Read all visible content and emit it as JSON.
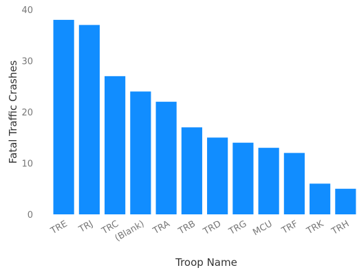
{
  "chart_data": {
    "type": "bar",
    "categories": [
      "TRE",
      "TRJ",
      "TRC",
      "(Blank)",
      "TRA",
      "TRB",
      "TRD",
      "TRG",
      "MCU",
      "TRF",
      "TRK",
      "TRH"
    ],
    "values": [
      38,
      37,
      27,
      24,
      22,
      17,
      15,
      14,
      13,
      12,
      6,
      5
    ],
    "xlabel": "Troop Name",
    "ylabel": "Fatal Traffic Crashes",
    "ylim": [
      0,
      40
    ],
    "yticks": [
      0,
      10,
      20,
      30,
      40
    ],
    "grid": false,
    "bar_color": "#118DFF"
  }
}
